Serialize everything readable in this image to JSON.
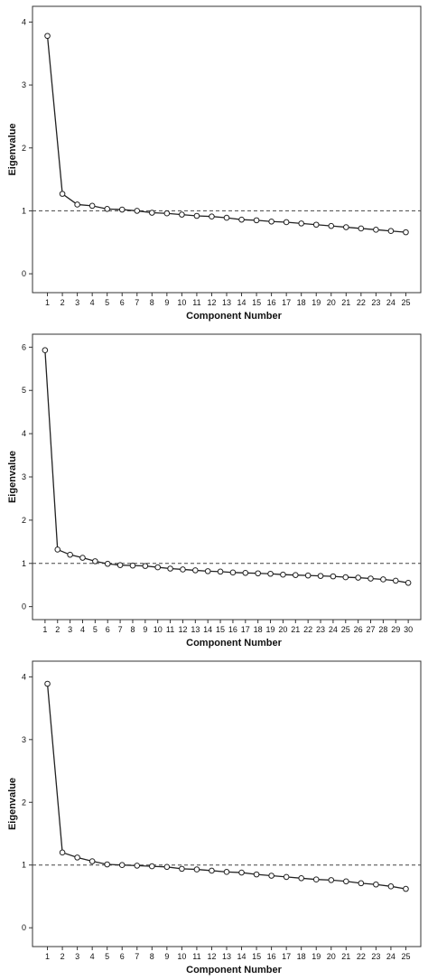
{
  "chart_data": [
    {
      "type": "line",
      "xlabel": "Component Number",
      "ylabel": "Eigenvalue",
      "x": [
        1,
        2,
        3,
        4,
        5,
        6,
        7,
        8,
        9,
        10,
        11,
        12,
        13,
        14,
        15,
        16,
        17,
        18,
        19,
        20,
        21,
        22,
        23,
        24,
        25
      ],
      "series": [
        {
          "values": [
            3.78,
            1.27,
            1.1,
            1.08,
            1.03,
            1.02,
            1.0,
            0.97,
            0.96,
            0.94,
            0.92,
            0.91,
            0.89,
            0.86,
            0.85,
            0.83,
            0.82,
            0.8,
            0.78,
            0.76,
            0.74,
            0.72,
            0.7,
            0.68,
            0.66
          ]
        }
      ],
      "reference_line": 1,
      "yticks": [
        0,
        1,
        2,
        3,
        4
      ],
      "ylim": [
        -0.3,
        4.25
      ],
      "grid": false,
      "colors": {
        "line": "#222222",
        "marker_stroke": "#222222",
        "marker_fill": "#ffffff",
        "reference": "#444444"
      }
    },
    {
      "type": "line",
      "xlabel": "Component Number",
      "ylabel": "Eigenvalue",
      "x": [
        1,
        2,
        3,
        4,
        5,
        6,
        7,
        8,
        9,
        10,
        11,
        12,
        13,
        14,
        15,
        16,
        17,
        18,
        19,
        20,
        21,
        22,
        23,
        24,
        25,
        26,
        27,
        28,
        29,
        30
      ],
      "series": [
        {
          "values": [
            5.93,
            1.32,
            1.2,
            1.13,
            1.05,
            0.99,
            0.96,
            0.95,
            0.94,
            0.91,
            0.88,
            0.86,
            0.84,
            0.82,
            0.81,
            0.79,
            0.78,
            0.77,
            0.76,
            0.74,
            0.73,
            0.72,
            0.71,
            0.7,
            0.68,
            0.67,
            0.65,
            0.63,
            0.6,
            0.55
          ]
        }
      ],
      "reference_line": 1,
      "yticks": [
        0,
        1,
        2,
        3,
        4,
        5,
        6
      ],
      "ylim": [
        -0.3,
        6.3
      ],
      "grid": false,
      "colors": {
        "line": "#222222",
        "marker_stroke": "#222222",
        "marker_fill": "#ffffff",
        "reference": "#444444"
      }
    },
    {
      "type": "line",
      "xlabel": "Component Number",
      "ylabel": "Eigenvalue",
      "x": [
        1,
        2,
        3,
        4,
        5,
        6,
        7,
        8,
        9,
        10,
        11,
        12,
        13,
        14,
        15,
        16,
        17,
        18,
        19,
        20,
        21,
        22,
        23,
        24,
        25
      ],
      "series": [
        {
          "values": [
            3.89,
            1.2,
            1.12,
            1.06,
            1.01,
            1.0,
            0.99,
            0.98,
            0.97,
            0.94,
            0.93,
            0.91,
            0.89,
            0.88,
            0.85,
            0.83,
            0.81,
            0.79,
            0.77,
            0.76,
            0.74,
            0.71,
            0.69,
            0.66,
            0.62
          ]
        }
      ],
      "reference_line": 1,
      "yticks": [
        0,
        1,
        2,
        3,
        4
      ],
      "ylim": [
        -0.3,
        4.25
      ],
      "grid": false,
      "colors": {
        "line": "#222222",
        "marker_stroke": "#222222",
        "marker_fill": "#ffffff",
        "reference": "#444444"
      }
    }
  ]
}
